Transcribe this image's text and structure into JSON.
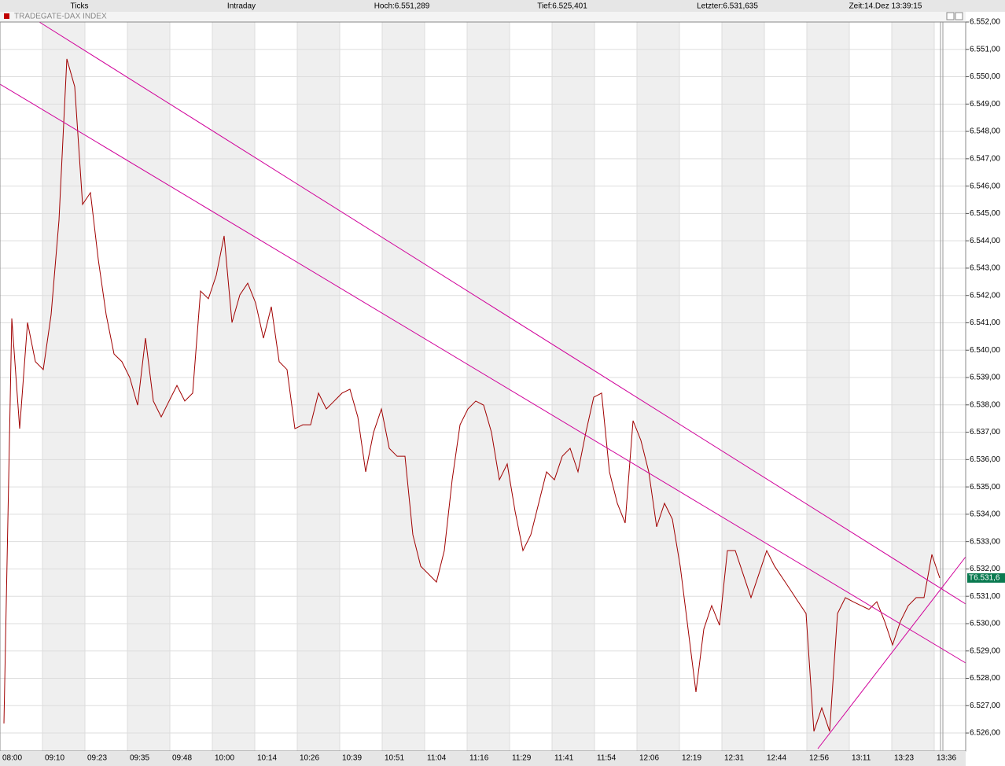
{
  "header": {
    "mode": "Ticks",
    "range": "Intraday",
    "high": "Hoch:6.551,289",
    "low": "Tief:6.525,401",
    "last": "Letzter:6.531,635",
    "time": "Zeit:14.Dez 13:39:15"
  },
  "chart_data": {
    "type": "line",
    "title": "TRADEGATE-DAX INDEX",
    "time_labels": [
      "08:00",
      "09:10",
      "09:23",
      "09:35",
      "09:48",
      "10:00",
      "10:14",
      "10:26",
      "10:39",
      "10:51",
      "11:04",
      "11:16",
      "11:29",
      "11:41",
      "11:54",
      "12:06",
      "12:19",
      "12:31",
      "12:44",
      "12:56",
      "13:11",
      "13:23",
      "13:36"
    ],
    "series": [
      {
        "color": "#a00000",
        "values": [
          6526.35,
          6541.16,
          6537.13,
          6541.01,
          6539.58,
          6539.29,
          6541.3,
          6544.75,
          6550.65,
          6549.64,
          6545.33,
          6545.76,
          6543.31,
          6541.3,
          6539.86,
          6539.58,
          6539.0,
          6537.99,
          6540.44,
          6538.14,
          6537.56,
          6538.14,
          6538.71,
          6538.14,
          6538.43,
          6542.16,
          6541.88,
          6542.74,
          6544.18,
          6541.01,
          6542.02,
          6542.45,
          6541.73,
          6540.44,
          6541.59,
          6539.58,
          6539.29,
          6537.13,
          6537.27,
          6537.27,
          6538.43,
          6537.85,
          6538.14,
          6538.43,
          6538.57,
          6537.56,
          6535.55,
          6536.99,
          6537.85,
          6536.41,
          6536.12,
          6536.12,
          6533.25,
          6532.1,
          6531.81,
          6531.52,
          6532.67,
          6535.26,
          6537.27,
          6537.85,
          6538.14,
          6537.99,
          6536.99,
          6535.26,
          6535.84,
          6534.11,
          6532.67,
          6533.25,
          6534.4,
          6535.55,
          6535.26,
          6536.12,
          6536.41,
          6535.55,
          6536.99,
          6538.28,
          6538.43,
          6535.55,
          6534.4,
          6533.68,
          6537.42,
          6536.7,
          6535.55,
          6533.54,
          6534.4,
          6533.82,
          6532.1,
          6529.8,
          6527.5,
          6529.8,
          6530.66,
          6529.94,
          6532.67,
          6532.67,
          6531.81,
          6530.95,
          6531.81,
          6532.67,
          6532.1,
          6531.67,
          6531.24,
          6530.8,
          6530.37,
          6526.06,
          6526.92,
          6526.06,
          6530.37,
          6530.95,
          6530.8,
          6530.66,
          6530.52,
          6530.8,
          6530.08,
          6529.22,
          6530.08,
          6530.66,
          6530.95,
          6530.95,
          6532.53,
          6531.67
        ]
      }
    ],
    "ylim": [
      6525.34,
      6552
    ],
    "yticks": [
      {
        "value": 6552,
        "label": "6.552,00"
      },
      {
        "value": 6551,
        "label": "6.551,00"
      },
      {
        "value": 6550,
        "label": "6.550,00"
      },
      {
        "value": 6549,
        "label": "6.549,00"
      },
      {
        "value": 6548,
        "label": "6.548,00"
      },
      {
        "value": 6547,
        "label": "6.547,00"
      },
      {
        "value": 6546,
        "label": "6.546,00"
      },
      {
        "value": 6545,
        "label": "6.545,00"
      },
      {
        "value": 6544,
        "label": "6.544,00"
      },
      {
        "value": 6543,
        "label": "6.543,00"
      },
      {
        "value": 6542,
        "label": "6.542,00"
      },
      {
        "value": 6541,
        "label": "6.541,00"
      },
      {
        "value": 6540,
        "label": "6.540,00"
      },
      {
        "value": 6539,
        "label": "6.539,00"
      },
      {
        "value": 6538,
        "label": "6.538,00"
      },
      {
        "value": 6537,
        "label": "6.537,00"
      },
      {
        "value": 6536,
        "label": "6.536,00"
      },
      {
        "value": 6535,
        "label": "6.535,00"
      },
      {
        "value": 6534,
        "label": "6.534,00"
      },
      {
        "value": 6533,
        "label": "6.533,00"
      },
      {
        "value": 6532,
        "label": "6.532,00"
      },
      {
        "value": 6531,
        "label": "6.531,00"
      },
      {
        "value": 6530,
        "label": "6.530,00"
      },
      {
        "value": 6529,
        "label": "6.529,00"
      },
      {
        "value": 6528,
        "label": "6.528,00"
      },
      {
        "value": 6527,
        "label": "6.527,00"
      },
      {
        "value": 6526,
        "label": "6.526,00"
      }
    ],
    "last_price_label": "T6.531,6",
    "last_price_color": "#0a7a50",
    "shaded_bands": true
  }
}
